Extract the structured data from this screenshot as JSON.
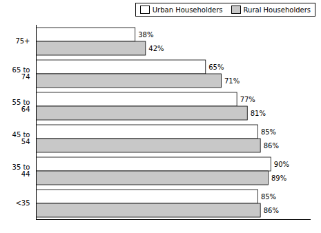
{
  "chart_data": {
    "type": "bar",
    "orientation": "horizontal",
    "categories": [
      "75+",
      "65 to\n74",
      "55 to\n64",
      "45 to\n54",
      "35 to\n44",
      "<35"
    ],
    "series": [
      {
        "name": "Urban Householders",
        "color": "#ffffff",
        "values": [
          38,
          65,
          77,
          85,
          90,
          85
        ],
        "value_labels": [
          "38%",
          "65%",
          "77%",
          "85%",
          "90%",
          "85%"
        ]
      },
      {
        "name": "Rural Householders",
        "color": "#c8c8c8",
        "values": [
          42,
          71,
          81,
          86,
          89,
          86
        ],
        "value_labels": [
          "42%",
          "71%",
          "81%",
          "86%",
          "89%",
          "86%"
        ]
      }
    ],
    "xlim": [
      0,
      105
    ],
    "grid": false,
    "legend": "upper right",
    "data_labels": true,
    "tick_labels": "y"
  }
}
